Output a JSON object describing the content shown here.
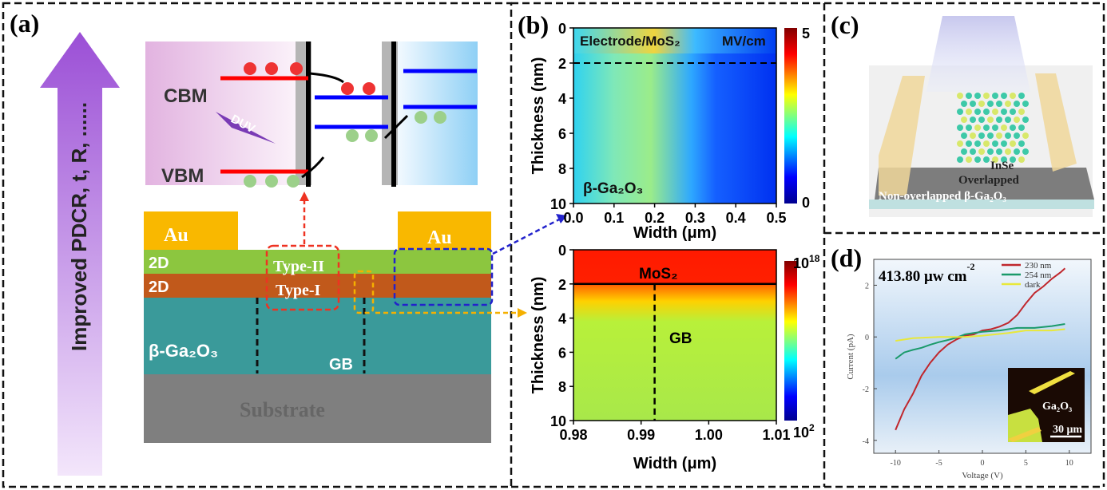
{
  "panels": {
    "a": {
      "label": "(a)",
      "arrow_text": "Improved PDCR, t, R, ......",
      "band": {
        "cbm": "CBM",
        "vbm": "VBM",
        "light": "DUV"
      },
      "layers": {
        "au_left": "Au",
        "au_right": "Au",
        "top_2d": "2D",
        "bottom_2d": "2D",
        "ga2o3": "β-Ga₂O₃",
        "substrate": "Substrate",
        "type2": "Type-II",
        "type1": "Type-I",
        "gb": "GB"
      },
      "colors": {
        "au": "#f9b800",
        "green2d": "#8cc63f",
        "brown2d": "#c1591b",
        "ga2o3": "#3a9a9a",
        "substrate": "#7f7f7f",
        "arrow": "#9b59d0"
      }
    },
    "b": {
      "label": "(b)",
      "top_annotation": "Electrode/MoS₂",
      "top_material": "β-Ga₂O₃",
      "bottom_annotation_mos2": "MoS₂",
      "bottom_annotation_gb": "GB"
    },
    "c": {
      "label": "(c)",
      "inse": "InSe",
      "overlapped": "Overlapped",
      "non_overlapped": "Non-overlapped  β-Ga₂O₃"
    },
    "d": {
      "label": "(d)",
      "power": "413.80 μw cm",
      "power_exp": "-2",
      "inset_material": "Ga₂O₃",
      "inset_scale": "30 μm"
    }
  },
  "chart_data": [
    {
      "type": "heatmap",
      "panel": "b-top",
      "xlabel": "Width (μm)",
      "ylabel": "Thickness (nm)",
      "xlim": [
        0.0,
        0.5
      ],
      "ylim": [
        10,
        0
      ],
      "xticks": [
        "0.0",
        "0.1",
        "0.2",
        "0.3",
        "0.4",
        "0.5"
      ],
      "yticks": [
        "0",
        "2",
        "4",
        "6",
        "8",
        "10"
      ],
      "colorbar": {
        "unit": "MV/cm",
        "min": "0",
        "max": "5"
      },
      "dashed_line_thickness": 2
    },
    {
      "type": "heatmap",
      "panel": "b-bottom",
      "xlabel": "Width (μm)",
      "ylabel": "Thickness (nm)",
      "xlim": [
        0.98,
        1.01
      ],
      "ylim": [
        10,
        0
      ],
      "xticks": [
        "0.98",
        "0.99",
        "1.00",
        "1.01"
      ],
      "yticks": [
        "0",
        "2",
        "4",
        "6",
        "8",
        "10"
      ],
      "colorbar": {
        "min": "10",
        "min_exp": "2",
        "max": "10",
        "max_exp": "18"
      },
      "gb_width": 0.992,
      "interface_thickness": 2
    },
    {
      "type": "line",
      "panel": "d",
      "xlabel": "Voltage (V)",
      "ylabel": "Current (pA)",
      "xlim": [
        -12.5,
        12.5
      ],
      "ylim": [
        -4.5,
        3.0
      ],
      "xticks": [
        "-10",
        "-5",
        "0",
        "5",
        "10"
      ],
      "yticks": [
        "-4",
        "-2",
        "0",
        "2"
      ],
      "legend_position": "top-right",
      "series": [
        {
          "name": "230 nm",
          "color": "#c0272d",
          "x": [
            -10,
            -9,
            -8,
            -7,
            -6,
            -5,
            -4,
            -3,
            -2,
            -1,
            0,
            1,
            2,
            3,
            4,
            5,
            6,
            7,
            8,
            9,
            9.5
          ],
          "y": [
            -3.6,
            -2.8,
            -2.2,
            -1.5,
            -1.0,
            -0.6,
            -0.3,
            -0.1,
            0.05,
            0.1,
            0.25,
            0.3,
            0.4,
            0.55,
            0.85,
            1.3,
            1.7,
            1.95,
            2.25,
            2.5,
            2.65
          ]
        },
        {
          "name": "254 nm",
          "color": "#1a9a6a",
          "x": [
            -10,
            -9,
            -8,
            -7,
            -6,
            -5,
            -4,
            -3,
            -2,
            -1,
            0,
            2,
            4,
            6,
            8,
            9.5
          ],
          "y": [
            -0.85,
            -0.6,
            -0.5,
            -0.42,
            -0.3,
            -0.2,
            -0.12,
            -0.03,
            0.1,
            0.15,
            0.2,
            0.25,
            0.35,
            0.35,
            0.42,
            0.5
          ]
        },
        {
          "name": "dark",
          "color": "#e8e83a",
          "x": [
            -10,
            -8,
            -5,
            -2,
            0,
            3,
            5,
            8,
            9.5
          ],
          "y": [
            -0.15,
            -0.05,
            0,
            0,
            0.05,
            0.15,
            0.25,
            0.25,
            0.3
          ]
        }
      ]
    }
  ]
}
